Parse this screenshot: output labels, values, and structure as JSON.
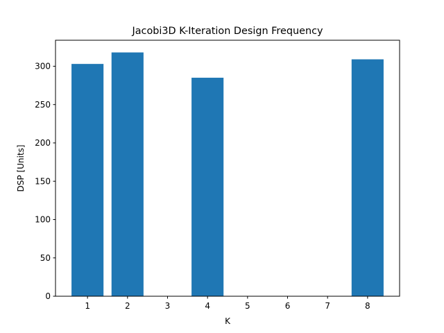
{
  "chart_data": {
    "type": "bar",
    "title": "Jacobi3D K-Iteration Design Frequency",
    "xlabel": "K",
    "ylabel": "DSP [Units]",
    "x": [
      1,
      2,
      4,
      8
    ],
    "values": [
      303,
      318,
      285,
      309
    ],
    "xlim": [
      0.2,
      8.8
    ],
    "xticks": [
      1,
      2,
      3,
      4,
      5,
      6,
      7,
      8
    ],
    "ylim": [
      0,
      333.9
    ],
    "yticks": [
      0,
      50,
      100,
      150,
      200,
      250,
      300
    ],
    "bar_width": 0.8,
    "bar_color": "#1f77b4",
    "grid": false,
    "legend": "none"
  }
}
